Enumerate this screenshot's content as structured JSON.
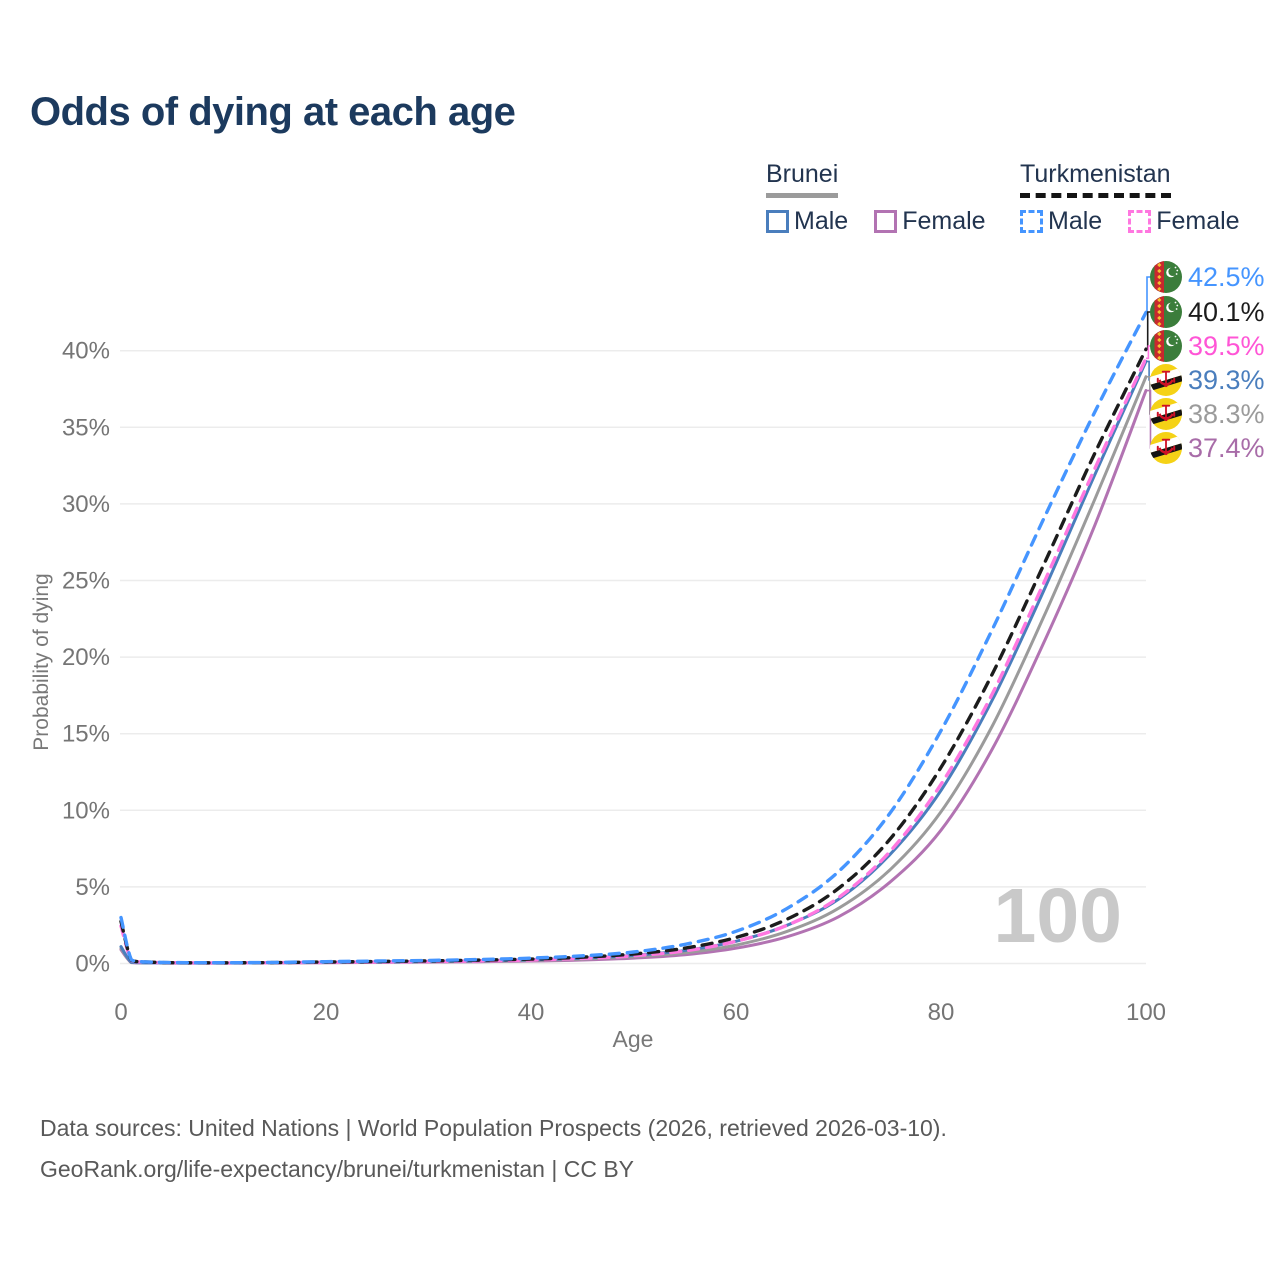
{
  "page": {
    "title": "Odds of dying at each age"
  },
  "legend": {
    "groups": [
      {
        "label": "Brunei",
        "line_style": "solid",
        "underline_color": "#9b9b9b",
        "items": [
          {
            "label": "Male",
            "color": "#4a7ebd"
          },
          {
            "label": "Female",
            "color": "#b273b2"
          }
        ]
      },
      {
        "label": "Turkmenistan",
        "line_style": "dashed",
        "underline_color": "#141414",
        "items": [
          {
            "label": "Male",
            "color": "#4595ff"
          },
          {
            "label": "Female",
            "color": "#ff77e0"
          }
        ]
      }
    ]
  },
  "chart_data": {
    "type": "line",
    "title": "Odds of dying at each age",
    "xlabel": "Age",
    "ylabel": "Probability of dying",
    "xlim": [
      0,
      100
    ],
    "ylim": [
      0,
      46
    ],
    "grid": "horizontal",
    "watermark": "100",
    "x_tick_values": [
      0,
      20,
      40,
      60,
      80,
      100
    ],
    "x_tick_labels": [
      "0",
      "20",
      "40",
      "60",
      "80",
      "100"
    ],
    "y_tick_values": [
      0,
      5,
      10,
      15,
      20,
      25,
      30,
      35,
      40
    ],
    "y_tick_labels": [
      "0%",
      "5%",
      "10%",
      "15%",
      "20%",
      "25%",
      "30%",
      "35%",
      "40%"
    ],
    "ages": [
      0,
      1,
      2,
      5,
      10,
      15,
      20,
      25,
      30,
      35,
      40,
      45,
      50,
      55,
      60,
      65,
      70,
      75,
      80,
      85,
      90,
      95,
      100
    ],
    "series": [
      {
        "name": "Turkmenistan Male",
        "group": "Turkmenistan",
        "sex": "male",
        "flag": "turkmenistan",
        "line_color": "#4595ff",
        "label_color": "#4595ff",
        "dash": true,
        "end_label": "42.5%",
        "values": [
          3.0,
          0.25,
          0.12,
          0.06,
          0.05,
          0.07,
          0.12,
          0.16,
          0.2,
          0.26,
          0.35,
          0.5,
          0.75,
          1.25,
          2.1,
          3.6,
          6.0,
          9.8,
          15.2,
          21.8,
          29.0,
          36.0,
          42.5
        ]
      },
      {
        "name": "Turkmenistan Both sexes",
        "group": "Turkmenistan",
        "sex": "both",
        "flag": "turkmenistan",
        "line_color": "#1c1c1c",
        "label_color": "#1c1c1c",
        "dash": true,
        "end_label": "40.1%",
        "values": [
          2.75,
          0.22,
          0.11,
          0.055,
          0.045,
          0.06,
          0.1,
          0.13,
          0.17,
          0.22,
          0.29,
          0.41,
          0.62,
          1.0,
          1.7,
          2.9,
          4.9,
          8.1,
          12.8,
          18.9,
          26.0,
          33.3,
          40.1
        ]
      },
      {
        "name": "Turkmenistan Female",
        "group": "Turkmenistan",
        "sex": "female",
        "flag": "turkmenistan",
        "line_color": "#ff77e0",
        "label_color": "#ff55d6",
        "dash": true,
        "end_label": "39.5%",
        "values": [
          2.45,
          0.2,
          0.1,
          0.05,
          0.04,
          0.05,
          0.08,
          0.1,
          0.13,
          0.17,
          0.23,
          0.33,
          0.5,
          0.82,
          1.45,
          2.5,
          4.3,
          7.3,
          11.7,
          17.6,
          24.8,
          32.3,
          39.5
        ]
      },
      {
        "name": "Brunei Male",
        "group": "Brunei",
        "sex": "male",
        "flag": "brunei",
        "line_color": "#4a7ebd",
        "label_color": "#4a7ebd",
        "dash": false,
        "end_label": "39.3%",
        "values": [
          1.1,
          0.08,
          0.05,
          0.03,
          0.03,
          0.05,
          0.08,
          0.1,
          0.13,
          0.18,
          0.24,
          0.35,
          0.53,
          0.85,
          1.45,
          2.5,
          4.2,
          7.1,
          11.3,
          17.2,
          24.3,
          31.9,
          39.3
        ]
      },
      {
        "name": "Brunei Both sexes",
        "group": "Brunei",
        "sex": "both",
        "flag": "brunei",
        "line_color": "#9b9b9b",
        "label_color": "#9b9b9b",
        "dash": false,
        "end_label": "38.3%",
        "values": [
          1.0,
          0.07,
          0.045,
          0.028,
          0.028,
          0.04,
          0.07,
          0.09,
          0.11,
          0.15,
          0.2,
          0.29,
          0.44,
          0.7,
          1.2,
          2.1,
          3.6,
          6.1,
          9.9,
          15.5,
          22.6,
          30.3,
          38.3
        ]
      },
      {
        "name": "Brunei Female",
        "group": "Brunei",
        "sex": "female",
        "flag": "brunei",
        "line_color": "#b273b2",
        "label_color": "#a86ca8",
        "dash": false,
        "end_label": "37.4%",
        "values": [
          0.9,
          0.06,
          0.04,
          0.025,
          0.025,
          0.035,
          0.055,
          0.07,
          0.09,
          0.12,
          0.16,
          0.23,
          0.35,
          0.57,
          1.0,
          1.75,
          3.05,
          5.3,
          8.7,
          14.0,
          20.9,
          28.6,
          37.4
        ]
      }
    ]
  },
  "footer": {
    "line1": "Data sources: United Nations | World Population Prospects (2026, retrieved 2026-03-10).",
    "line2": "GeoRank.org/life-expectancy/brunei/turkmenistan | CC BY"
  }
}
